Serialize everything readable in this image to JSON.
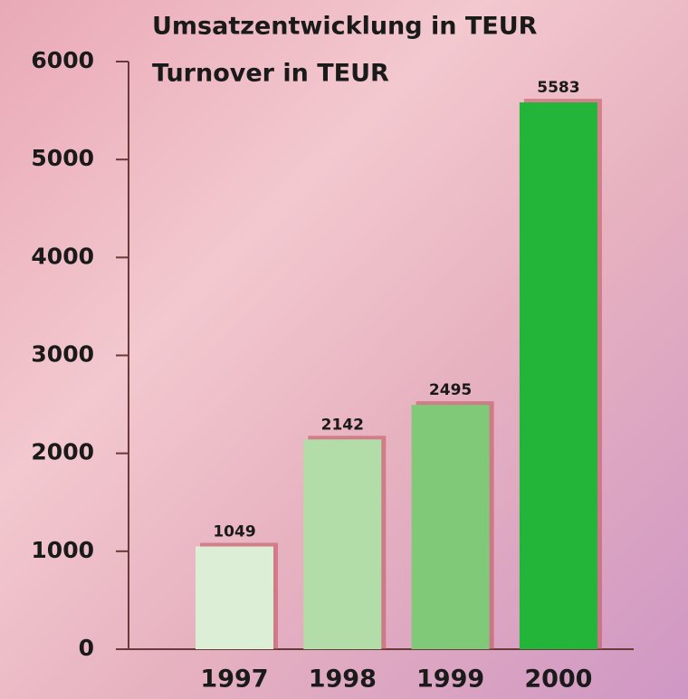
{
  "chart_data": {
    "type": "bar",
    "title": "Umsatzentwicklung in TEUR",
    "subtitle": "Turnover in TEUR",
    "categories": [
      "1997",
      "1998",
      "1999",
      "2000"
    ],
    "values": [
      1049,
      2142,
      2495,
      5583
    ],
    "colors": [
      "#dcefd6",
      "#b2dca8",
      "#80c978",
      "#22b53a"
    ],
    "ylim": [
      0,
      6000
    ],
    "yticks": [
      0,
      1000,
      2000,
      3000,
      4000,
      5000,
      6000
    ],
    "grid": false
  }
}
